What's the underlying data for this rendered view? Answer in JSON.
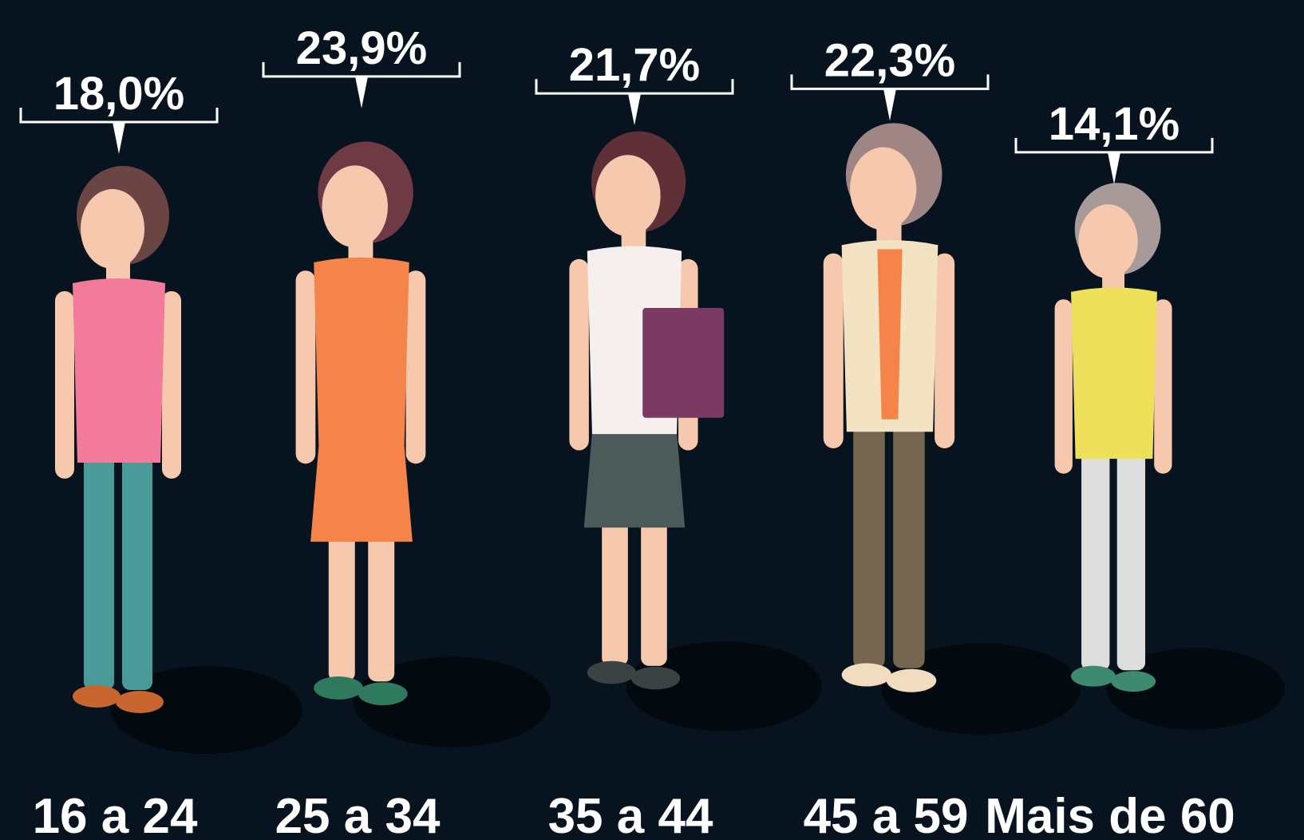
{
  "chart_data": {
    "type": "pictograph",
    "categories": [
      "16 a 24",
      "25 a 34",
      "35 a 44",
      "45 a 59",
      "Mais de 60"
    ],
    "values": [
      18.0,
      23.9,
      21.7,
      22.3,
      14.1
    ],
    "value_labels": [
      "18,0%",
      "23,9%",
      "21,7%",
      "22,3%",
      "14,1%"
    ],
    "color": "#ffffff"
  }
}
